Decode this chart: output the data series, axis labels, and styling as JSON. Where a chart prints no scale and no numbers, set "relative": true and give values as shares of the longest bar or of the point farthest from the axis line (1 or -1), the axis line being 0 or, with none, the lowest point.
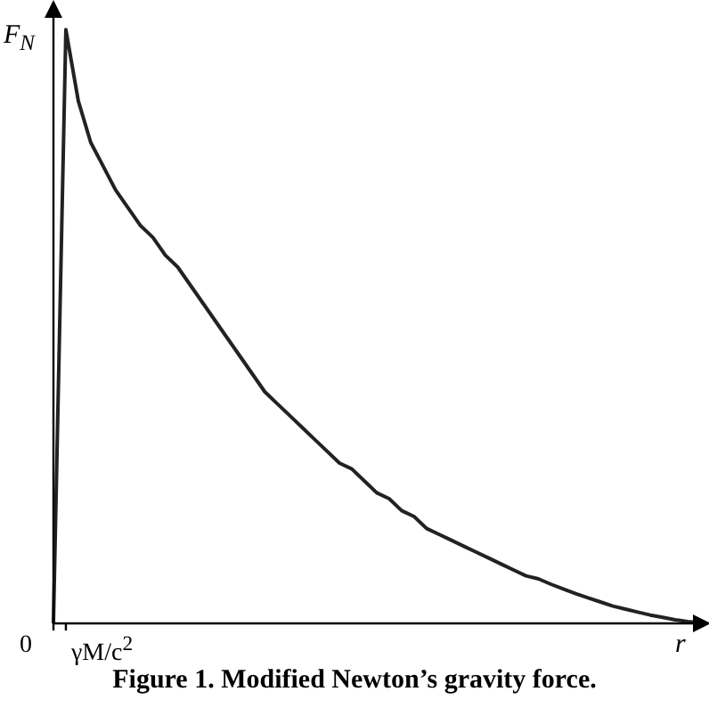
{
  "chart_data": {
    "type": "line",
    "title": "Figure 1. Modified Newton’s gravity force.",
    "xlabel": "r",
    "ylabel": "F$_{N}$",
    "relative": true,
    "annotations": [
      "0",
      "γM/c$^{2}$"
    ],
    "categories": [
      null,
      null,
      null,
      null,
      null,
      null,
      null,
      null,
      null,
      null,
      null,
      null,
      null,
      null,
      null,
      null,
      null,
      null,
      null,
      null,
      null,
      null,
      null,
      null,
      null,
      null,
      null,
      null,
      null,
      null,
      null,
      null,
      null,
      null,
      null,
      null,
      null,
      null,
      null,
      null,
      null,
      null,
      null,
      null,
      null,
      null,
      null,
      null,
      null,
      null,
      null,
      null,
      null
    ],
    "values": [
      0,
      1,
      0.88,
      0.81,
      0.77,
      0.73,
      0.7,
      0.67,
      0.65,
      0.62,
      0.6,
      0.57,
      0.54,
      0.51,
      0.48,
      0.45,
      0.42,
      0.39,
      0.37,
      0.35,
      0.33,
      0.31,
      0.29,
      0.27,
      0.26,
      0.24,
      0.22,
      0.21,
      0.19,
      0.18,
      0.16,
      0.15,
      0.14,
      0.13,
      0.12,
      0.11,
      0.1,
      0.09,
      0.08,
      0.075,
      0.066,
      0.058,
      0.05,
      0.043,
      0.036,
      0.029,
      0.024,
      0.019,
      0.014,
      0.01,
      0.006,
      0.003,
      0.001
    ],
    "color": "#222222",
    "marker": "none",
    "line_style": "solid",
    "legend": false
  }
}
